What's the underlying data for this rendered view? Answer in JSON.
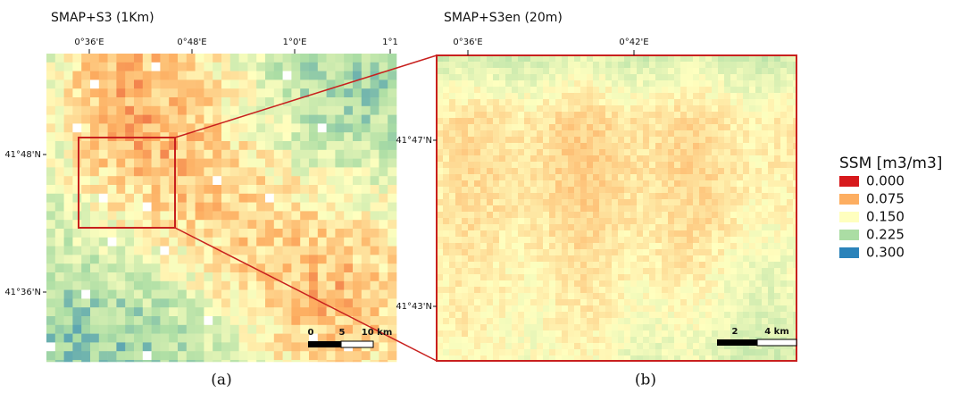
{
  "panels": [
    {
      "title": "SMAP+S3 (1Km)",
      "lon_labels": [
        "0°36'E",
        "0°48'E",
        "1°0'E",
        "1°1"
      ],
      "lat_labels": [
        "41°48'N",
        "41°36'N"
      ],
      "scale_labels": [
        "0",
        "5",
        "10 km"
      ],
      "caption": "(a)"
    },
    {
      "title": "SMAP+S3en (20m)",
      "lon_labels": [
        "0°36'E",
        "0°42'E"
      ],
      "lat_labels": [
        "41°47'N",
        "41°43'N"
      ],
      "scale_labels": [
        "2",
        "4 km"
      ],
      "caption": "(b)"
    }
  ],
  "legend": {
    "title": "SSM [m3/m3]",
    "items": [
      {
        "label": "0.000",
        "color": "#d7191c"
      },
      {
        "label": "0.075",
        "color": "#fdae61"
      },
      {
        "label": "0.150",
        "color": "#ffffbf"
      },
      {
        "label": "0.225",
        "color": "#abdda4"
      },
      {
        "label": "0.300",
        "color": "#2b83ba"
      }
    ]
  }
}
